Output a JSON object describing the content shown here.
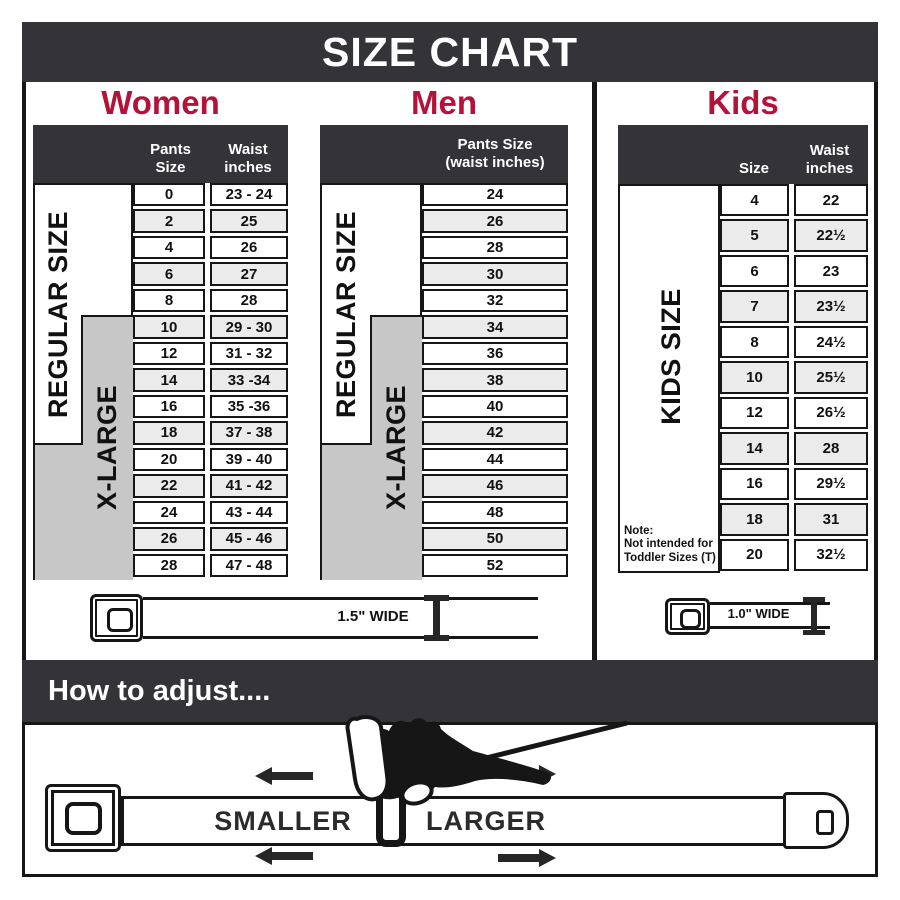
{
  "title": "SIZE CHART",
  "colors": {
    "bar_dark": "#343438",
    "accent_red": "#b41238",
    "row_alt": "#ebebeb",
    "label_gray": "#c7c7c7",
    "line_black": "#161616"
  },
  "sections": {
    "women": {
      "title": "Women",
      "regular_label": "REGULAR SIZE",
      "xlarge_label": "X-LARGE",
      "col1_header": "Pants Size",
      "col2_header_line1": "Waist",
      "col2_header_line2": "inches",
      "rows": [
        {
          "size": "0",
          "waist": "23 - 24"
        },
        {
          "size": "2",
          "waist": "25"
        },
        {
          "size": "4",
          "waist": "26"
        },
        {
          "size": "6",
          "waist": "27"
        },
        {
          "size": "8",
          "waist": "28"
        },
        {
          "size": "10",
          "waist": "29 - 30"
        },
        {
          "size": "12",
          "waist": "31 - 32"
        },
        {
          "size": "14",
          "waist": "33 -34"
        },
        {
          "size": "16",
          "waist": "35 -36"
        },
        {
          "size": "18",
          "waist": "37 - 38"
        },
        {
          "size": "20",
          "waist": "39 - 40"
        },
        {
          "size": "22",
          "waist": "41 - 42"
        },
        {
          "size": "24",
          "waist": "43 - 44"
        },
        {
          "size": "26",
          "waist": "45 - 46"
        },
        {
          "size": "28",
          "waist": "47 - 48"
        }
      ]
    },
    "men": {
      "title": "Men",
      "regular_label": "REGULAR SIZE",
      "xlarge_label": "X-LARGE",
      "header_line1": "Pants Size",
      "header_line2": "(waist inches)",
      "rows": [
        "24",
        "26",
        "28",
        "30",
        "32",
        "34",
        "36",
        "38",
        "40",
        "42",
        "44",
        "46",
        "48",
        "50",
        "52"
      ]
    },
    "kids": {
      "title": "Kids",
      "side_label": "KIDS SIZE",
      "col1_header": "Size",
      "col2_header_line1": "Waist",
      "col2_header_line2": "inches",
      "note_lines": [
        "Note:",
        "Not intended for",
        "Toddler Sizes (T)"
      ],
      "rows": [
        {
          "size": "4",
          "waist": "22"
        },
        {
          "size": "5",
          "waist": "22½"
        },
        {
          "size": "6",
          "waist": "23"
        },
        {
          "size": "7",
          "waist": "23½"
        },
        {
          "size": "8",
          "waist": "24½"
        },
        {
          "size": "10",
          "waist": "25½"
        },
        {
          "size": "12",
          "waist": "26½"
        },
        {
          "size": "14",
          "waist": "28"
        },
        {
          "size": "16",
          "waist": "29½"
        },
        {
          "size": "18",
          "waist": "31"
        },
        {
          "size": "20",
          "waist": "32½"
        }
      ]
    }
  },
  "belts": {
    "adult": {
      "width_label": "1.5\" WIDE"
    },
    "kids": {
      "width_label": "1.0\" WIDE"
    }
  },
  "adjust": {
    "title": "How to adjust....",
    "smaller": "SMALLER",
    "larger": "LARGER"
  },
  "chart_data": [
    {
      "type": "table",
      "title": "Women",
      "columns": [
        "Pants Size",
        "Waist inches"
      ],
      "rows": [
        [
          "0",
          "23 - 24"
        ],
        [
          "2",
          "25"
        ],
        [
          "4",
          "26"
        ],
        [
          "6",
          "27"
        ],
        [
          "8",
          "28"
        ],
        [
          "10",
          "29 - 30"
        ],
        [
          "12",
          "31 - 32"
        ],
        [
          "14",
          "33 -34"
        ],
        [
          "16",
          "35 -36"
        ],
        [
          "18",
          "37 - 38"
        ],
        [
          "20",
          "39 - 40"
        ],
        [
          "22",
          "41 - 42"
        ],
        [
          "24",
          "43 - 44"
        ],
        [
          "26",
          "45 - 46"
        ],
        [
          "28",
          "47 - 48"
        ]
      ],
      "row_groups": {
        "REGULAR SIZE": [
          "0",
          "2",
          "4",
          "6",
          "8",
          "10",
          "12",
          "14",
          "16",
          "18"
        ],
        "X-LARGE": [
          "10",
          "12",
          "14",
          "16",
          "18",
          "20",
          "22",
          "24",
          "26",
          "28"
        ]
      },
      "belt_width": "1.5\" WIDE"
    },
    {
      "type": "table",
      "title": "Men",
      "columns": [
        "Pants Size (waist inches)"
      ],
      "rows": [
        [
          "24"
        ],
        [
          "26"
        ],
        [
          "28"
        ],
        [
          "30"
        ],
        [
          "32"
        ],
        [
          "34"
        ],
        [
          "36"
        ],
        [
          "38"
        ],
        [
          "40"
        ],
        [
          "42"
        ],
        [
          "44"
        ],
        [
          "46"
        ],
        [
          "48"
        ],
        [
          "50"
        ],
        [
          "52"
        ]
      ],
      "row_groups": {
        "REGULAR SIZE": [
          "24",
          "26",
          "28",
          "30",
          "32",
          "34"
        ],
        "X-LARGE": [
          "34",
          "36",
          "38",
          "40",
          "42",
          "44",
          "46",
          "48",
          "50",
          "52"
        ]
      },
      "belt_width": "1.5\" WIDE"
    },
    {
      "type": "table",
      "title": "Kids",
      "columns": [
        "Size",
        "Waist inches"
      ],
      "rows": [
        [
          "4",
          "22"
        ],
        [
          "5",
          "22½"
        ],
        [
          "6",
          "23"
        ],
        [
          "7",
          "23½"
        ],
        [
          "8",
          "24½"
        ],
        [
          "10",
          "25½"
        ],
        [
          "12",
          "26½"
        ],
        [
          "14",
          "28"
        ],
        [
          "16",
          "29½"
        ],
        [
          "18",
          "31"
        ],
        [
          "20",
          "32½"
        ]
      ],
      "row_groups": {
        "KIDS SIZE": [
          "4",
          "5",
          "6",
          "7",
          "8",
          "10",
          "12",
          "14",
          "16",
          "18",
          "20"
        ]
      },
      "note": "Note: Not intended for Toddler Sizes (T)",
      "belt_width": "1.0\" WIDE"
    }
  ]
}
